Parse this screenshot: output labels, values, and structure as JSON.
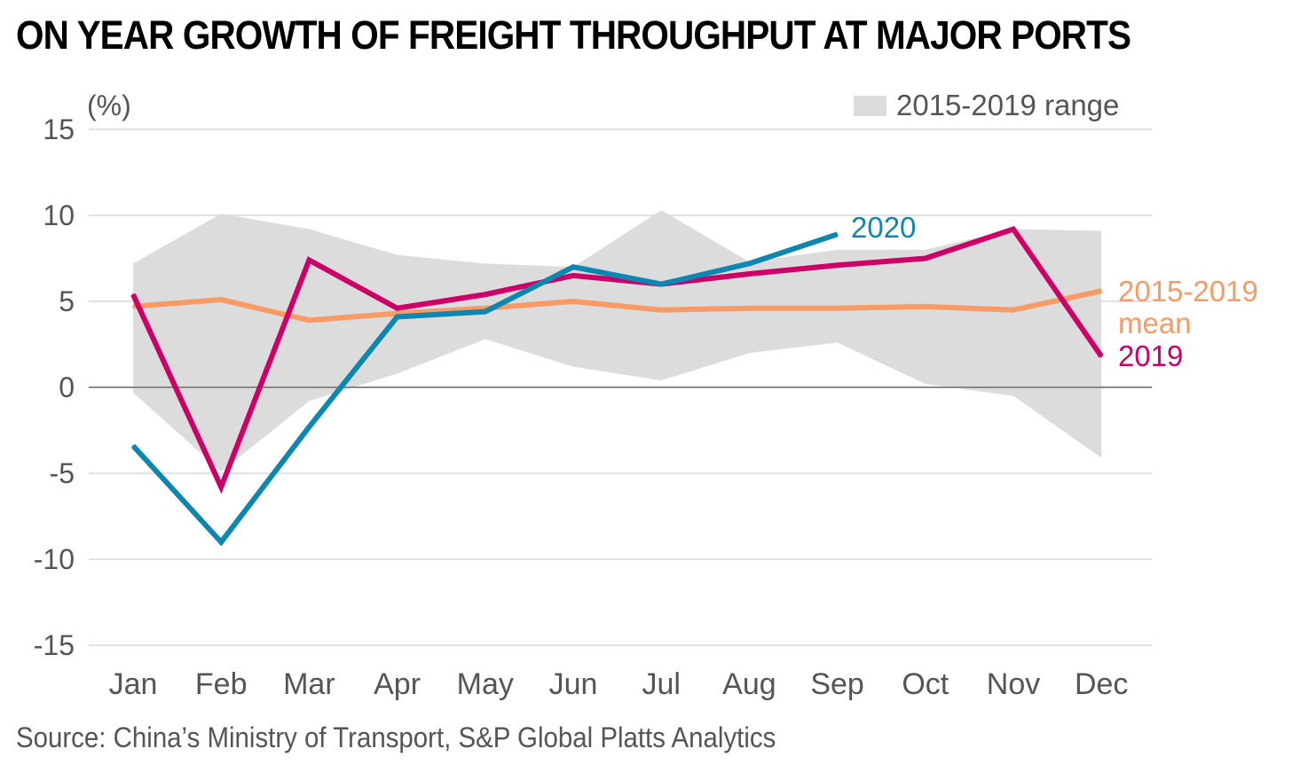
{
  "title": "ON YEAR GROWTH OF FREIGHT THROUGHPUT AT MAJOR PORTS",
  "source": "Source: China’s Ministry of Transport, S&P Global Platts Analytics",
  "chart_data": {
    "type": "line",
    "y_unit_label": "(%)",
    "ylim": [
      -15,
      15
    ],
    "y_ticks": [
      "15",
      "10",
      "5",
      "0",
      "-5",
      "-10",
      "-15"
    ],
    "categories": [
      "Jan",
      "Feb",
      "Mar",
      "Apr",
      "May",
      "Jun",
      "Jul",
      "Aug",
      "Sep",
      "Oct",
      "Nov",
      "Dec"
    ],
    "grid": true,
    "range_band": {
      "legend_label": "2015-2019 range",
      "color": "#dcdcdd",
      "upper": [
        7.2,
        10.1,
        9.2,
        7.7,
        7.2,
        7.0,
        10.3,
        7.3,
        8.0,
        8.0,
        9.2,
        9.1
      ],
      "lower": [
        -0.3,
        -4.9,
        -0.8,
        0.8,
        2.8,
        1.2,
        0.4,
        2.0,
        2.6,
        0.2,
        -0.5,
        -4.1
      ]
    },
    "series": [
      {
        "label_lines": [
          "2015-2019",
          "mean"
        ],
        "color": "#f79a64",
        "values": [
          4.7,
          5.1,
          3.9,
          4.3,
          4.6,
          5.0,
          4.5,
          4.6,
          4.6,
          4.7,
          4.5,
          5.6
        ]
      },
      {
        "label_lines": [
          "2019"
        ],
        "color": "#cc0066",
        "values": [
          5.4,
          -5.8,
          7.4,
          4.6,
          5.4,
          6.5,
          6.0,
          6.6,
          7.1,
          7.5,
          9.2,
          1.8
        ]
      },
      {
        "label_lines": [
          "2020"
        ],
        "color": "#0d86b0",
        "values": [
          -3.4,
          -9.0,
          -2.3,
          4.1,
          4.4,
          7.0,
          6.0,
          7.2,
          8.9,
          null,
          null,
          null
        ]
      }
    ]
  }
}
